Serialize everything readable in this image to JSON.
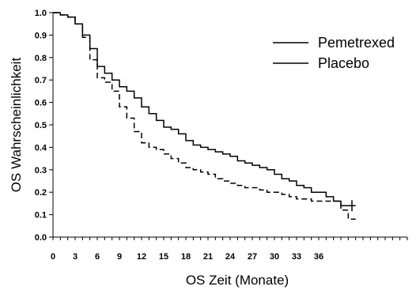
{
  "chart_data": {
    "type": "line",
    "xlabel": "OS Zeit (Monate)",
    "ylabel": "OS Wahrscheinlichkeit",
    "xlim": [
      0,
      48
    ],
    "ylim": [
      0,
      1.0
    ],
    "x_ticks": [
      0,
      3,
      6,
      9,
      12,
      15,
      18,
      21,
      24,
      27,
      30,
      33,
      36
    ],
    "y_ticks": [
      0.0,
      0.1,
      0.2,
      0.3,
      0.4,
      0.5,
      0.6,
      0.7,
      0.8,
      0.9,
      1.0
    ],
    "y_tick_labels": [
      "0.0",
      "0.1",
      "0.2",
      "0.3",
      "0.4",
      "0.5",
      "0.6",
      "0.7",
      "0.8",
      "0.9",
      "1.0"
    ],
    "legend_position": "top-right",
    "series": [
      {
        "name": "Pemetrexed",
        "style": "solid",
        "color": "#000000",
        "step_points": [
          [
            0,
            1.0
          ],
          [
            1,
            0.99
          ],
          [
            2,
            0.98
          ],
          [
            3,
            0.95
          ],
          [
            4,
            0.9
          ],
          [
            5,
            0.84
          ],
          [
            6,
            0.76
          ],
          [
            7,
            0.73
          ],
          [
            8,
            0.7
          ],
          [
            9,
            0.67
          ],
          [
            10,
            0.65
          ],
          [
            11,
            0.62
          ],
          [
            12,
            0.58
          ],
          [
            13,
            0.55
          ],
          [
            14,
            0.52
          ],
          [
            15,
            0.49
          ],
          [
            16,
            0.48
          ],
          [
            17,
            0.46
          ],
          [
            18,
            0.43
          ],
          [
            19,
            0.41
          ],
          [
            20,
            0.4
          ],
          [
            21,
            0.39
          ],
          [
            22,
            0.38
          ],
          [
            23,
            0.37
          ],
          [
            24,
            0.36
          ],
          [
            25,
            0.34
          ],
          [
            26,
            0.33
          ],
          [
            27,
            0.32
          ],
          [
            28,
            0.31
          ],
          [
            29,
            0.3
          ],
          [
            30,
            0.28
          ],
          [
            31,
            0.26
          ],
          [
            32,
            0.25
          ],
          [
            33,
            0.23
          ],
          [
            34,
            0.22
          ],
          [
            35,
            0.2
          ],
          [
            36,
            0.2
          ],
          [
            37,
            0.18
          ],
          [
            38,
            0.16
          ],
          [
            39,
            0.14
          ],
          [
            40,
            0.14
          ],
          [
            41,
            0.14
          ]
        ],
        "censor_marks": [
          [
            40.5,
            0.14
          ]
        ]
      },
      {
        "name": "Placebo",
        "style": "dashed",
        "color": "#000000",
        "step_points": [
          [
            0,
            1.0
          ],
          [
            1,
            0.99
          ],
          [
            2,
            0.98
          ],
          [
            3,
            0.95
          ],
          [
            4,
            0.89
          ],
          [
            5,
            0.79
          ],
          [
            6,
            0.71
          ],
          [
            7,
            0.69
          ],
          [
            8,
            0.65
          ],
          [
            9,
            0.58
          ],
          [
            10,
            0.53
          ],
          [
            11,
            0.47
          ],
          [
            12,
            0.42
          ],
          [
            13,
            0.4
          ],
          [
            14,
            0.39
          ],
          [
            15,
            0.37
          ],
          [
            16,
            0.35
          ],
          [
            17,
            0.33
          ],
          [
            18,
            0.31
          ],
          [
            19,
            0.3
          ],
          [
            20,
            0.29
          ],
          [
            21,
            0.28
          ],
          [
            22,
            0.26
          ],
          [
            23,
            0.25
          ],
          [
            24,
            0.24
          ],
          [
            25,
            0.23
          ],
          [
            26,
            0.22
          ],
          [
            27,
            0.22
          ],
          [
            28,
            0.21
          ],
          [
            29,
            0.2
          ],
          [
            30,
            0.2
          ],
          [
            31,
            0.19
          ],
          [
            32,
            0.18
          ],
          [
            33,
            0.17
          ],
          [
            34,
            0.17
          ],
          [
            35,
            0.16
          ],
          [
            36,
            0.16
          ],
          [
            37,
            0.16
          ],
          [
            38,
            0.16
          ],
          [
            39,
            0.12
          ],
          [
            40,
            0.08
          ],
          [
            41,
            0.08
          ]
        ],
        "censor_marks": []
      }
    ]
  }
}
